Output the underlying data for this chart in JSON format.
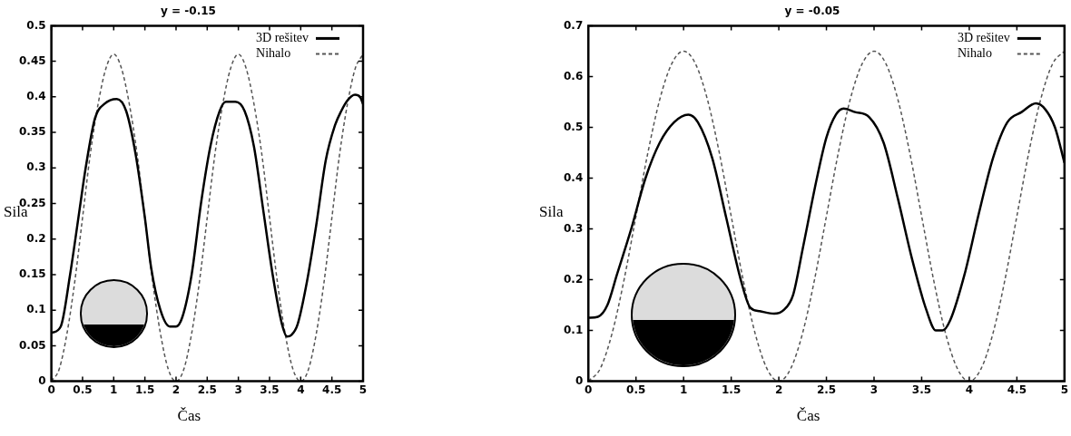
{
  "chart_data": [
    {
      "type": "line",
      "title": "y = -0.15",
      "xlabel": "Čas",
      "ylabel": "Sila",
      "xlim": [
        0,
        5
      ],
      "xticks": [
        0,
        0.5,
        1,
        1.5,
        2,
        2.5,
        3,
        3.5,
        4,
        4.5,
        5
      ],
      "ylim": [
        0,
        0.5
      ],
      "yticks": [
        0,
        0.05,
        0.1,
        0.15,
        0.2,
        0.25,
        0.3,
        0.35,
        0.4,
        0.45,
        0.5
      ],
      "legend": "top right",
      "series": [
        {
          "name": "3D rešitev",
          "color": "#000000",
          "line_style": "solid",
          "x": [
            0,
            0.15,
            0.3,
            0.45,
            0.55,
            0.7,
            0.85,
            1.05,
            1.2,
            1.35,
            1.5,
            1.6,
            1.75,
            1.9,
            2.0,
            2.1,
            2.25,
            2.4,
            2.55,
            2.7,
            2.8,
            2.95,
            3.1,
            3.25,
            3.4,
            3.55,
            3.7,
            3.78,
            3.85,
            3.95,
            4.1,
            4.25,
            4.4,
            4.55,
            4.65,
            4.75,
            4.87,
            4.95,
            5
          ],
          "values": [
            0.068,
            0.077,
            0.15,
            0.24,
            0.3,
            0.37,
            0.39,
            0.397,
            0.38,
            0.32,
            0.23,
            0.16,
            0.1,
            0.077,
            0.077,
            0.09,
            0.15,
            0.25,
            0.33,
            0.38,
            0.393,
            0.393,
            0.38,
            0.33,
            0.24,
            0.15,
            0.08,
            0.063,
            0.065,
            0.08,
            0.14,
            0.22,
            0.31,
            0.36,
            0.38,
            0.395,
            0.403,
            0.4,
            0.39
          ]
        },
        {
          "name": "Nihalo",
          "color": "#555555",
          "line_style": "dashed",
          "x": [
            0,
            0.125,
            0.25,
            0.375,
            0.5,
            0.625,
            0.75,
            0.875,
            1,
            1.125,
            1.25,
            1.375,
            1.5,
            1.625,
            1.75,
            1.875,
            2,
            2.125,
            2.25,
            2.375,
            2.5,
            2.625,
            2.75,
            2.875,
            3,
            3.125,
            3.25,
            3.375,
            3.5,
            3.625,
            3.75,
            3.875,
            4,
            4.125,
            4.25,
            4.375,
            4.5,
            4.625,
            4.75,
            4.875,
            5
          ],
          "values": [
            0,
            0.017,
            0.067,
            0.14,
            0.23,
            0.32,
            0.39,
            0.44,
            0.46,
            0.44,
            0.39,
            0.32,
            0.23,
            0.14,
            0.067,
            0.017,
            0,
            0.017,
            0.067,
            0.14,
            0.23,
            0.32,
            0.39,
            0.44,
            0.46,
            0.44,
            0.39,
            0.32,
            0.23,
            0.14,
            0.067,
            0.017,
            0,
            0.017,
            0.067,
            0.14,
            0.23,
            0.32,
            0.39,
            0.44,
            0.46
          ]
        }
      ]
    },
    {
      "type": "line",
      "title": "y = -0.05",
      "xlabel": "Čas",
      "ylabel": "Sila",
      "xlim": [
        0,
        5
      ],
      "xticks": [
        0,
        0.5,
        1,
        1.5,
        2,
        2.5,
        3,
        3.5,
        4,
        4.5,
        5
      ],
      "ylim": [
        0,
        0.7
      ],
      "yticks": [
        0,
        0.1,
        0.2,
        0.3,
        0.4,
        0.5,
        0.6,
        0.7
      ],
      "legend": "top right",
      "series": [
        {
          "name": "3D rešitev",
          "color": "#000000",
          "line_style": "solid",
          "x": [
            0,
            0.1,
            0.2,
            0.3,
            0.45,
            0.6,
            0.75,
            0.9,
            1.05,
            1.15,
            1.3,
            1.45,
            1.6,
            1.7,
            1.8,
            1.95,
            2.05,
            2.15,
            2.25,
            2.4,
            2.5,
            2.6,
            2.68,
            2.8,
            2.95,
            3.1,
            3.25,
            3.4,
            3.55,
            3.65,
            3.72,
            3.8,
            3.95,
            4.1,
            4.25,
            4.4,
            4.55,
            4.7,
            4.8,
            4.9,
            5
          ],
          "values": [
            0.125,
            0.127,
            0.15,
            0.21,
            0.3,
            0.4,
            0.47,
            0.51,
            0.525,
            0.51,
            0.44,
            0.32,
            0.2,
            0.145,
            0.138,
            0.133,
            0.14,
            0.17,
            0.26,
            0.4,
            0.48,
            0.525,
            0.537,
            0.53,
            0.52,
            0.47,
            0.36,
            0.24,
            0.14,
            0.1,
            0.1,
            0.12,
            0.21,
            0.33,
            0.44,
            0.51,
            0.53,
            0.547,
            0.535,
            0.5,
            0.43
          ]
        },
        {
          "name": "Nihalo",
          "color": "#555555",
          "line_style": "dashed",
          "x": [
            0,
            0.125,
            0.25,
            0.375,
            0.5,
            0.625,
            0.75,
            0.875,
            1,
            1.125,
            1.25,
            1.375,
            1.5,
            1.625,
            1.75,
            1.875,
            2,
            2.125,
            2.25,
            2.375,
            2.5,
            2.625,
            2.75,
            2.875,
            3,
            3.125,
            3.25,
            3.375,
            3.5,
            3.625,
            3.75,
            3.875,
            4,
            4.125,
            4.25,
            4.375,
            4.5,
            4.625,
            4.75,
            4.875,
            5
          ],
          "values": [
            0,
            0.025,
            0.095,
            0.2,
            0.325,
            0.45,
            0.555,
            0.625,
            0.65,
            0.625,
            0.555,
            0.45,
            0.325,
            0.2,
            0.095,
            0.025,
            0,
            0.025,
            0.095,
            0.2,
            0.325,
            0.45,
            0.555,
            0.625,
            0.65,
            0.625,
            0.555,
            0.45,
            0.325,
            0.2,
            0.095,
            0.025,
            0,
            0.025,
            0.095,
            0.2,
            0.325,
            0.45,
            0.555,
            0.625,
            0.65
          ]
        }
      ]
    }
  ]
}
